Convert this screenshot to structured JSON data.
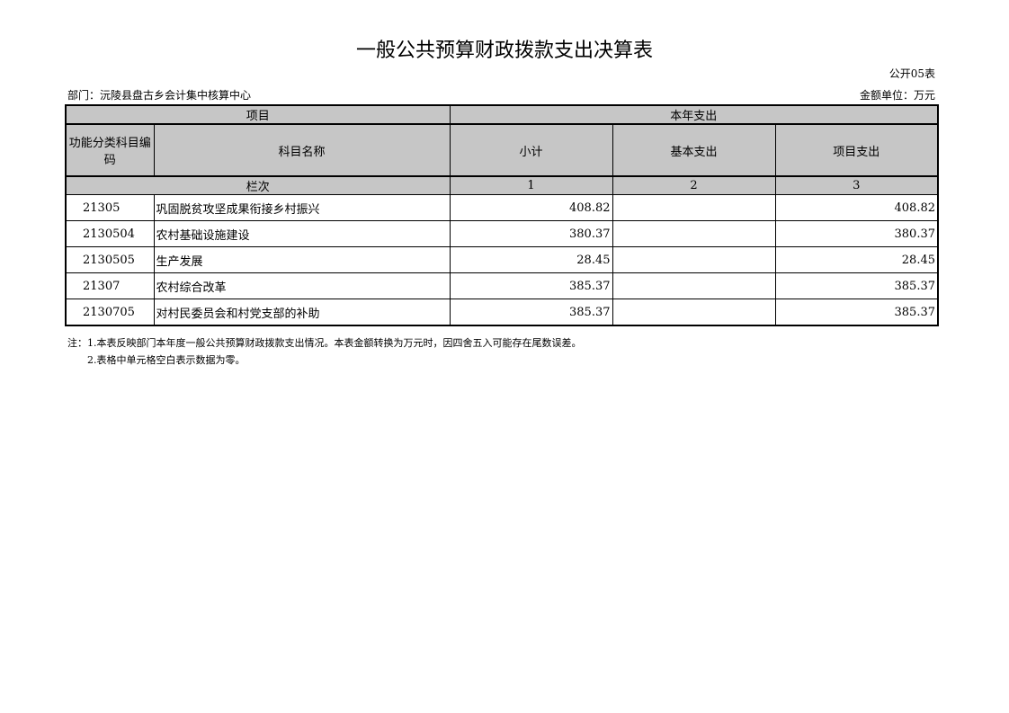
{
  "title": "一般公共预算财政拨款支出决算表",
  "form_code": "公开05表",
  "department": "部门：沅陵县盘古乡会计集中核算中心",
  "unit": "金额单位：万元",
  "headers": {
    "item": "项目",
    "current_year": "本年支出",
    "code": "功能分类科目编码",
    "name": "科目名称",
    "subtotal": "小计",
    "basic": "基本支出",
    "project": "项目支出",
    "column_no": "栏次",
    "c1": "1",
    "c2": "2",
    "c3": "3"
  },
  "rows": [
    {
      "code": "21305",
      "name": "巩固脱贫攻坚成果衔接乡村振兴",
      "subtotal": "408.82",
      "basic": "",
      "project": "408.82"
    },
    {
      "code": "2130504",
      "name": "农村基础设施建设",
      "subtotal": "380.37",
      "basic": "",
      "project": "380.37"
    },
    {
      "code": "2130505",
      "name": "生产发展",
      "subtotal": "28.45",
      "basic": "",
      "project": "28.45"
    },
    {
      "code": "21307",
      "name": "农村综合改革",
      "subtotal": "385.37",
      "basic": "",
      "project": "385.37"
    },
    {
      "code": "2130705",
      "name": "对村民委员会和村党支部的补助",
      "subtotal": "385.37",
      "basic": "",
      "project": "385.37"
    }
  ],
  "notes": [
    "注：1.本表反映部门本年度一般公共预算财政拨款支出情况。本表金额转换为万元时，因四舍五入可能存在尾数误差。",
    "2.表格中单元格空白表示数据为零。"
  ]
}
